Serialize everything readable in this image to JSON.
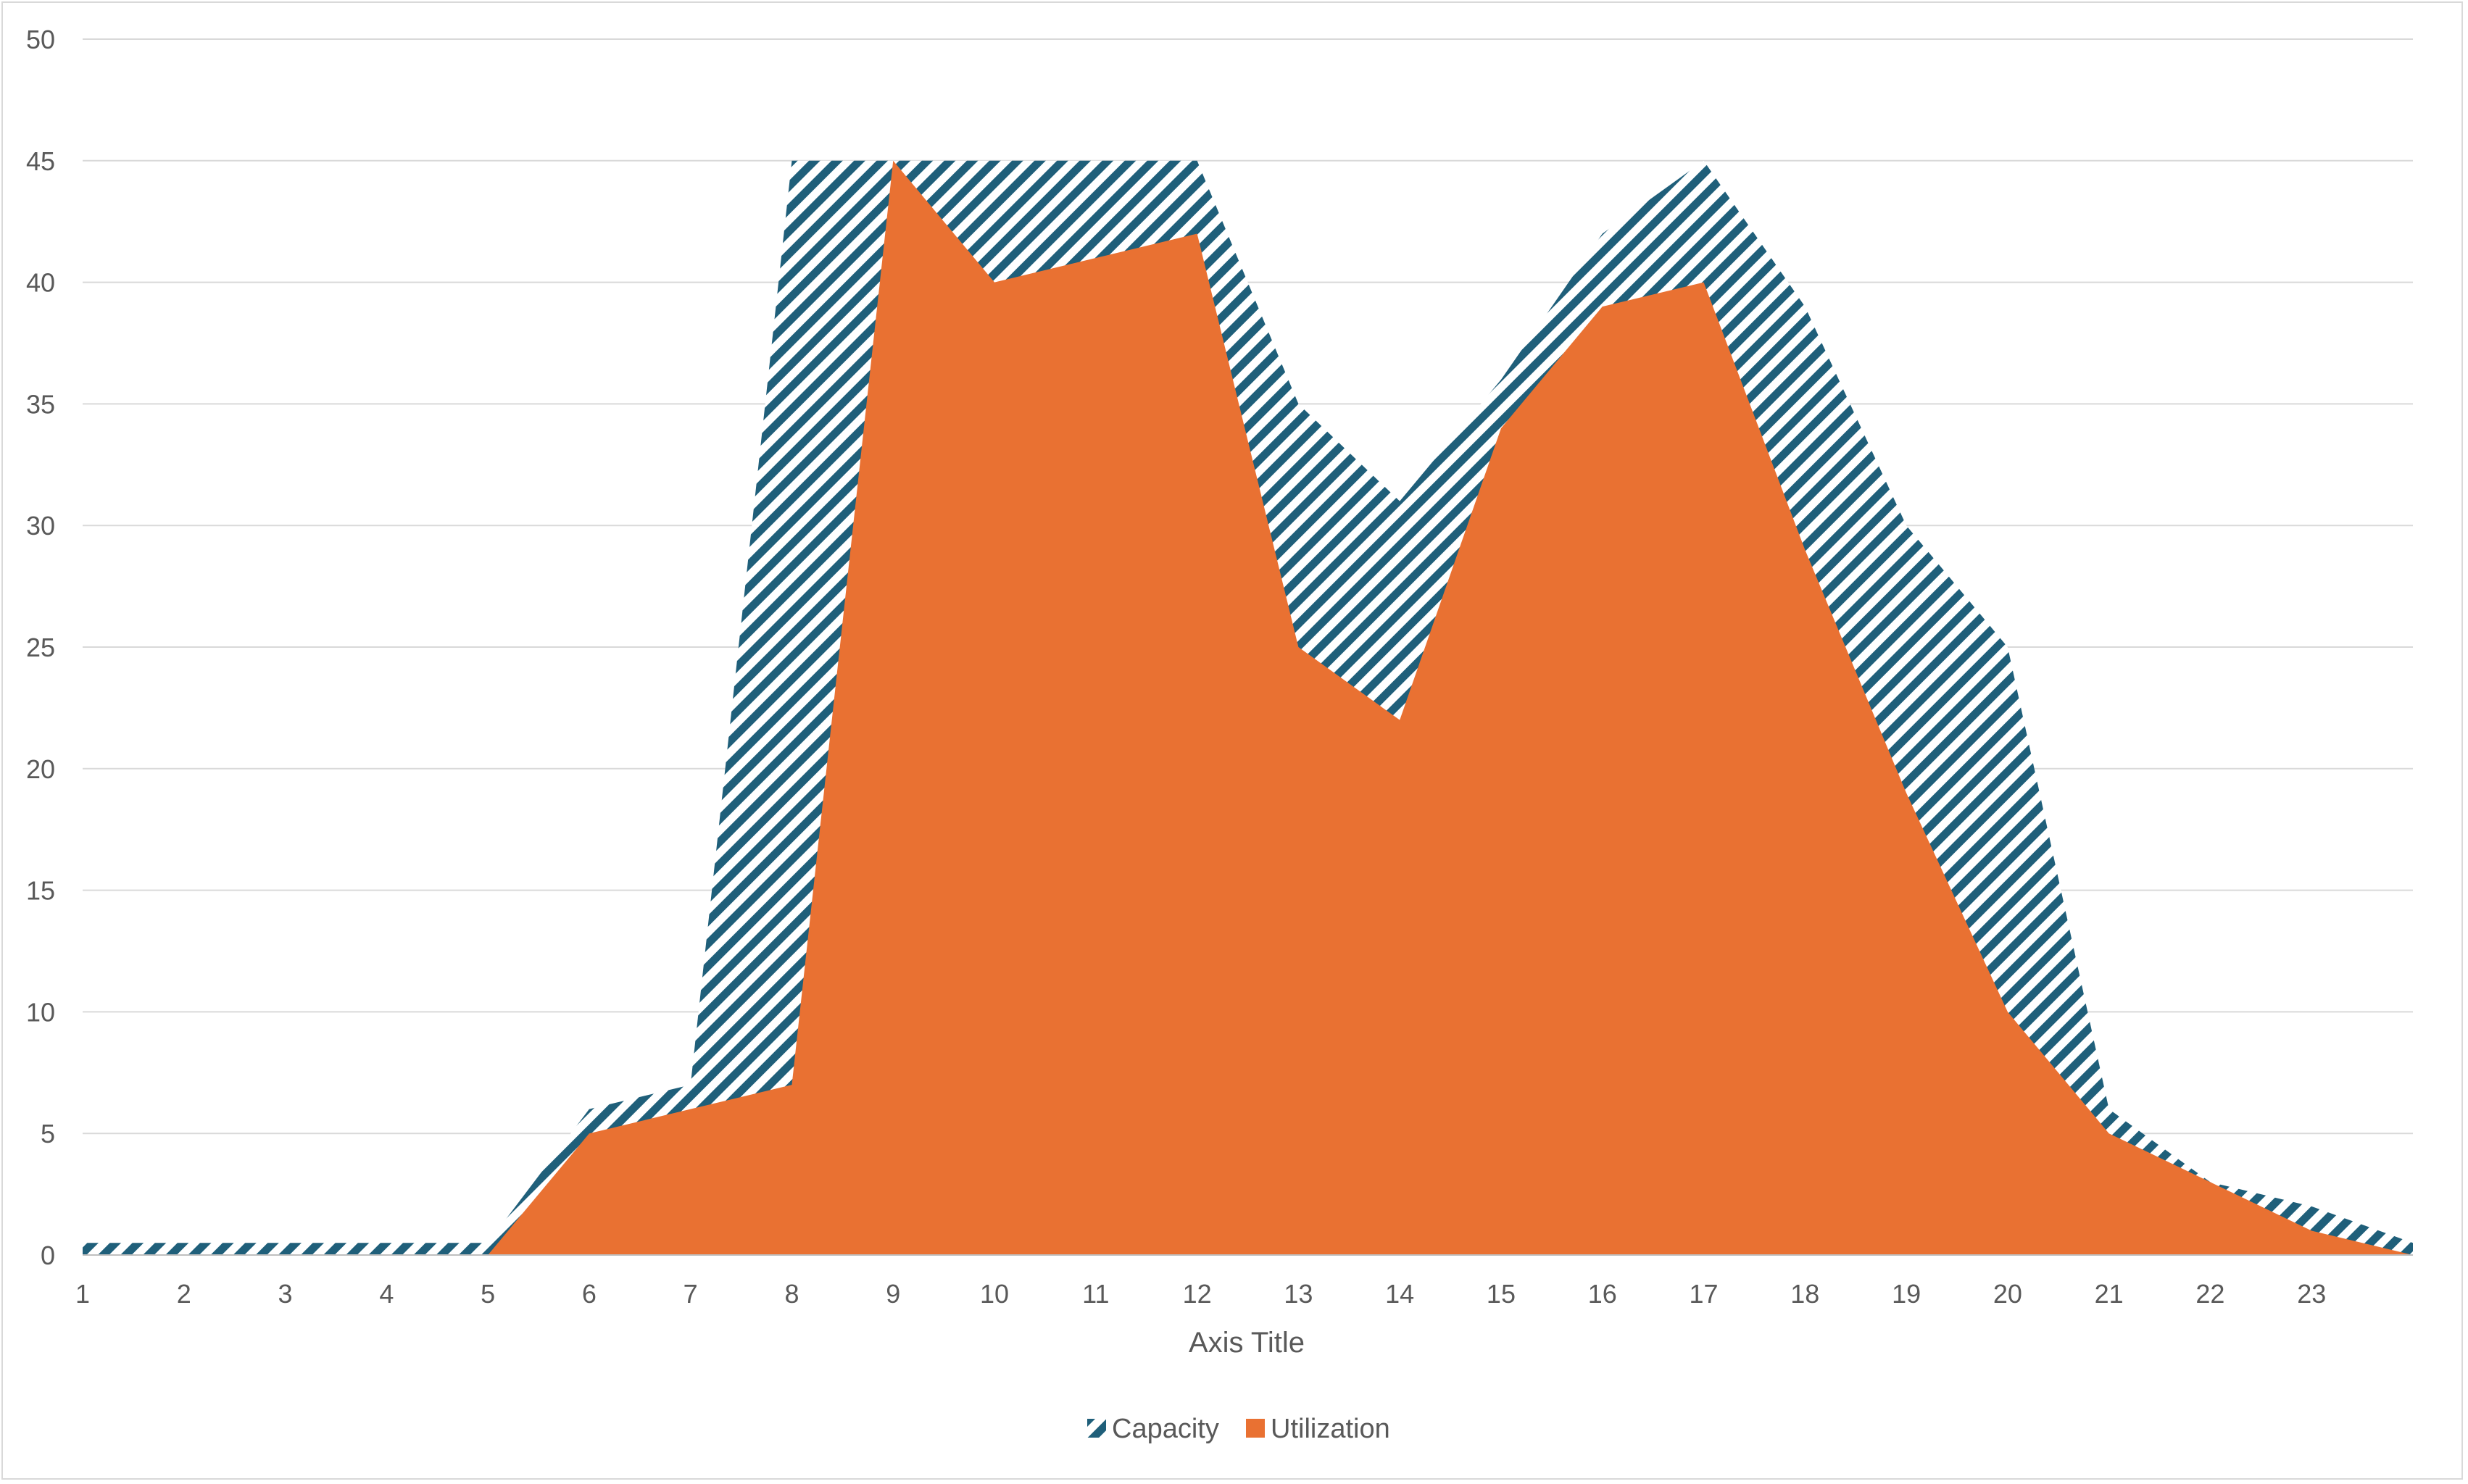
{
  "chart_data": {
    "type": "area",
    "x": [
      1,
      2,
      3,
      4,
      5,
      6,
      7,
      8,
      9,
      10,
      11,
      12,
      13,
      14,
      15,
      16,
      17,
      18,
      19,
      20,
      21,
      22,
      23,
      24
    ],
    "x_tick_labels": [
      "1",
      "2",
      "3",
      "4",
      "5",
      "6",
      "7",
      "8",
      "9",
      "10",
      "11",
      "12",
      "13",
      "14",
      "15",
      "16",
      "17",
      "18",
      "19",
      "20",
      "21",
      "22",
      "23"
    ],
    "y_tick_labels": [
      "0",
      "5",
      "10",
      "15",
      "20",
      "25",
      "30",
      "35",
      "40",
      "45",
      "50"
    ],
    "ylim": [
      0,
      50
    ],
    "y_ticks": [
      0,
      5,
      10,
      15,
      20,
      25,
      30,
      35,
      40,
      45,
      50
    ],
    "xlabel": "Axis Title",
    "ylabel": "",
    "title": "",
    "grid": true,
    "legend_position": "bottom",
    "series": [
      {
        "name": "Capacity",
        "fill": "pattern-diagonal-stripes",
        "color": "#1f5f7a",
        "values": [
          0.5,
          0.5,
          0.5,
          0.5,
          0.5,
          6,
          7,
          45,
          45,
          45,
          45,
          45,
          35,
          31,
          36,
          42,
          45,
          39,
          30,
          25,
          6,
          3,
          2,
          0.5
        ]
      },
      {
        "name": "Utilization",
        "fill": "solid",
        "color": "#e97132",
        "values": [
          0,
          0,
          0,
          0,
          0,
          5,
          6,
          7,
          45,
          40,
          41,
          42,
          25,
          22,
          34,
          39,
          40,
          29,
          19,
          10,
          5,
          3,
          1,
          0
        ]
      }
    ]
  }
}
